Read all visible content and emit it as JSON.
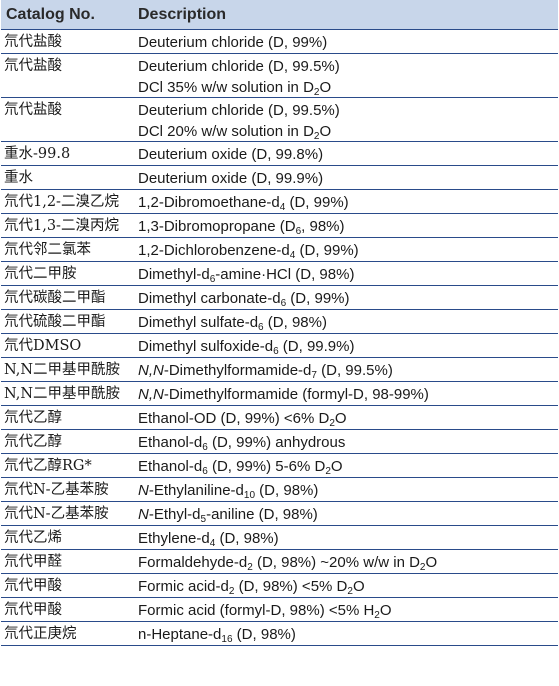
{
  "header": {
    "catalog_label": "Catalog No.",
    "description_label": "Description"
  },
  "rows": [
    {
      "catalog": "氘代盐酸",
      "lines": [
        [
          [
            "t",
            "Deuterium chloride (D, 99%)"
          ]
        ]
      ]
    },
    {
      "catalog": "氘代盐酸",
      "lines": [
        [
          [
            "t",
            "Deuterium chloride (D, 99.5%)"
          ]
        ],
        [
          [
            "t",
            "DCl 35% w/w solution in D"
          ],
          [
            "s",
            "2"
          ],
          [
            "t",
            "O"
          ]
        ]
      ]
    },
    {
      "catalog": "氘代盐酸",
      "lines": [
        [
          [
            "t",
            "Deuterium chloride (D, 99.5%)"
          ]
        ],
        [
          [
            "t",
            "DCl 20% w/w solution in D"
          ],
          [
            "s",
            "2"
          ],
          [
            "t",
            "O"
          ]
        ]
      ]
    },
    {
      "catalog": "重水-99.8",
      "lines": [
        [
          [
            "t",
            "Deuterium oxide (D, 99.8%)"
          ]
        ]
      ]
    },
    {
      "catalog": "重水",
      "lines": [
        [
          [
            "t",
            "Deuterium oxide (D, 99.9%)"
          ]
        ]
      ]
    },
    {
      "catalog": "氘代1,2-二溴乙烷",
      "lines": [
        [
          [
            "t",
            "1,2-Dibromoethane-d"
          ],
          [
            "s",
            "4"
          ],
          [
            "t",
            " (D, 99%)"
          ]
        ]
      ]
    },
    {
      "catalog": "氘代1,3-二溴丙烷",
      "lines": [
        [
          [
            "t",
            "1,3-Dibromopropane (D"
          ],
          [
            "s",
            "6"
          ],
          [
            "t",
            ", 98%)"
          ]
        ]
      ]
    },
    {
      "catalog": "氘代邻二氯苯",
      "lines": [
        [
          [
            "t",
            "1,2-Dichlorobenzene-d"
          ],
          [
            "s",
            "4"
          ],
          [
            "t",
            " (D, 99%)"
          ]
        ]
      ]
    },
    {
      "catalog": "氘代二甲胺",
      "lines": [
        [
          [
            "t",
            "Dimethyl-d"
          ],
          [
            "s",
            "6"
          ],
          [
            "t",
            "-amine·HCl (D, 98%)"
          ]
        ]
      ]
    },
    {
      "catalog": "氘代碳酸二甲酯",
      "lines": [
        [
          [
            "t",
            "Dimethyl carbonate-d"
          ],
          [
            "s",
            "6"
          ],
          [
            "t",
            " (D, 99%)"
          ]
        ]
      ]
    },
    {
      "catalog": "氘代硫酸二甲酯",
      "lines": [
        [
          [
            "t",
            "Dimethyl sulfate-d"
          ],
          [
            "s",
            "6"
          ],
          [
            "t",
            " (D, 98%)"
          ]
        ]
      ]
    },
    {
      "catalog": "氘代DMSO",
      "lines": [
        [
          [
            "t",
            "Dimethyl sulfoxide-d"
          ],
          [
            "s",
            "6"
          ],
          [
            "t",
            " (D, 99.9%)"
          ]
        ]
      ]
    },
    {
      "catalog": "N,N二甲基甲酰胺",
      "lines": [
        [
          [
            "i",
            "N,N"
          ],
          [
            "t",
            "-Dimethylformamide-d"
          ],
          [
            "s",
            "7"
          ],
          [
            "t",
            " (D, 99.5%)"
          ]
        ]
      ]
    },
    {
      "catalog": "N,N二甲基甲酰胺",
      "lines": [
        [
          [
            "i",
            "N,N"
          ],
          [
            "t",
            "-Dimethylformamide (formyl-D, 98-99%)"
          ]
        ]
      ]
    },
    {
      "catalog": "氘代乙醇",
      "lines": [
        [
          [
            "t",
            "Ethanol-OD (D, 99%) <6% D"
          ],
          [
            "s",
            "2"
          ],
          [
            "t",
            "O"
          ]
        ]
      ]
    },
    {
      "catalog": "氘代乙醇",
      "lines": [
        [
          [
            "t",
            "Ethanol-d"
          ],
          [
            "s",
            "6"
          ],
          [
            "t",
            " (D, 99%) anhydrous"
          ]
        ]
      ]
    },
    {
      "catalog": "氘代乙醇RG*",
      "lines": [
        [
          [
            "t",
            "Ethanol-d"
          ],
          [
            "s",
            "6"
          ],
          [
            "t",
            " (D, 99%) 5-6% D"
          ],
          [
            "s",
            "2"
          ],
          [
            "t",
            "O"
          ]
        ]
      ]
    },
    {
      "catalog": "氘代N-乙基苯胺",
      "lines": [
        [
          [
            "i",
            "N"
          ],
          [
            "t",
            "-Ethylaniline-d"
          ],
          [
            "s",
            "10"
          ],
          [
            "t",
            " (D, 98%)"
          ]
        ]
      ]
    },
    {
      "catalog": "氘代N-乙基苯胺",
      "lines": [
        [
          [
            "i",
            "N"
          ],
          [
            "t",
            "-Ethyl-d"
          ],
          [
            "s",
            "5"
          ],
          [
            "t",
            "-aniline (D, 98%)"
          ]
        ]
      ]
    },
    {
      "catalog": "氘代乙烯",
      "lines": [
        [
          [
            "t",
            "Ethylene-d"
          ],
          [
            "s",
            "4"
          ],
          [
            "t",
            " (D, 98%)"
          ]
        ]
      ]
    },
    {
      "catalog": "氘代甲醛",
      "lines": [
        [
          [
            "t",
            "Formaldehyde-d"
          ],
          [
            "s",
            "2"
          ],
          [
            "t",
            " (D, 98%) ~20% w/w in D"
          ],
          [
            "s",
            "2"
          ],
          [
            "t",
            "O"
          ]
        ]
      ]
    },
    {
      "catalog": "氘代甲酸",
      "lines": [
        [
          [
            "t",
            "Formic acid-d"
          ],
          [
            "s",
            "2"
          ],
          [
            "t",
            " (D, 98%) <5% D"
          ],
          [
            "s",
            "2"
          ],
          [
            "t",
            "O"
          ]
        ]
      ]
    },
    {
      "catalog": "氘代甲酸",
      "lines": [
        [
          [
            "t",
            "Formic acid (formyl-D, 98%) <5% H"
          ],
          [
            "s",
            "2"
          ],
          [
            "t",
            "O"
          ]
        ]
      ]
    },
    {
      "catalog": "氘代正庚烷",
      "lines": [
        [
          [
            "t",
            "n-Heptane-d"
          ],
          [
            "s",
            "16"
          ],
          [
            "t",
            " (D, 98%)"
          ]
        ]
      ]
    }
  ]
}
